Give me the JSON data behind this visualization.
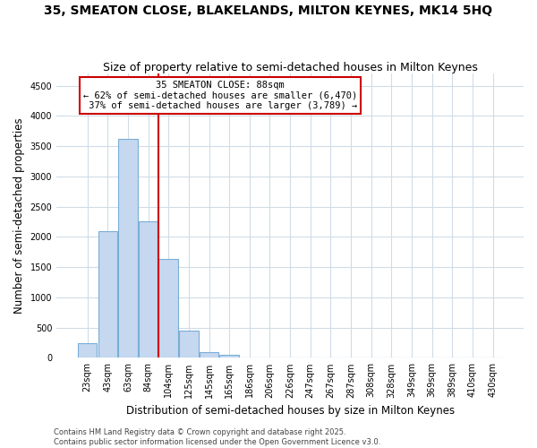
{
  "title": "35, SMEATON CLOSE, BLAKELANDS, MILTON KEYNES, MK14 5HQ",
  "subtitle": "Size of property relative to semi-detached houses in Milton Keynes",
  "xlabel": "Distribution of semi-detached houses by size in Milton Keynes",
  "ylabel": "Number of semi-detached properties",
  "categories": [
    "23sqm",
    "43sqm",
    "63sqm",
    "84sqm",
    "104sqm",
    "125sqm",
    "145sqm",
    "165sqm",
    "186sqm",
    "206sqm",
    "226sqm",
    "247sqm",
    "267sqm",
    "287sqm",
    "308sqm",
    "328sqm",
    "349sqm",
    "369sqm",
    "389sqm",
    "410sqm",
    "430sqm"
  ],
  "values": [
    250,
    2100,
    3620,
    2250,
    1630,
    450,
    100,
    50,
    0,
    0,
    0,
    0,
    0,
    0,
    0,
    0,
    0,
    0,
    0,
    0,
    0
  ],
  "bar_color": "#c5d8f0",
  "bar_edge_color": "#7aaed6",
  "property_line_x": 3.5,
  "property_line_color": "#cc0000",
  "annotation_text": "35 SMEATON CLOSE: 88sqm\n← 62% of semi-detached houses are smaller (6,470)\n 37% of semi-detached houses are larger (3,789) →",
  "annotation_box_color": "#ffffff",
  "annotation_box_edge": "#cc0000",
  "ylim": [
    0,
    4700
  ],
  "yticks": [
    0,
    500,
    1000,
    1500,
    2000,
    2500,
    3000,
    3500,
    4000,
    4500
  ],
  "footer_line1": "Contains HM Land Registry data © Crown copyright and database right 2025.",
  "footer_line2": "Contains public sector information licensed under the Open Government Licence v3.0.",
  "plot_bg_color": "#ffffff",
  "fig_bg_color": "#ffffff",
  "grid_color": "#d0dce8",
  "title_fontsize": 10,
  "subtitle_fontsize": 9,
  "axis_label_fontsize": 8.5,
  "tick_fontsize": 7,
  "annotation_fontsize": 7.5,
  "footer_fontsize": 6
}
